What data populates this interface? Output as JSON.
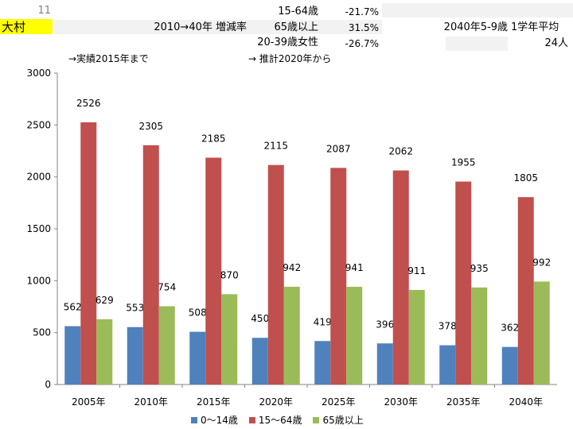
{
  "table": {
    "row_number": "11",
    "area_name": "大村",
    "period_label": "2010→40年 増減率",
    "rows": [
      {
        "label": "15-64歳",
        "value": "-21.7%"
      },
      {
        "label": "65歳以上",
        "value": "31.5%"
      },
      {
        "label": "20-39歳女性",
        "value": "-26.7%"
      }
    ],
    "school_label": "2040年5-9歳",
    "school_label2": "1学年平均",
    "school_value": "24人"
  },
  "notes": {
    "actual": "→実績2015年まで",
    "estimate": "→ 推計2020年から"
  },
  "chart_data": {
    "type": "bar",
    "categories": [
      "2005年",
      "2010年",
      "2015年",
      "2020年",
      "2025年",
      "2030年",
      "2035年",
      "2040年"
    ],
    "series": [
      {
        "name": "0～14歳",
        "color": "#4f81bd",
        "values": [
          562,
          553,
          508,
          450,
          419,
          396,
          378,
          362
        ]
      },
      {
        "name": "15～64歳",
        "color": "#c0504d",
        "values": [
          2526,
          2305,
          2185,
          2115,
          2087,
          2062,
          1955,
          1805
        ]
      },
      {
        "name": "65歳以上",
        "color": "#9bbb59",
        "values": [
          629,
          754,
          870,
          942,
          941,
          911,
          935,
          992
        ]
      }
    ],
    "ylim": [
      0,
      3000
    ],
    "yticks": [
      0,
      500,
      1000,
      1500,
      2000,
      2500,
      3000
    ],
    "grid": false,
    "legend": "bottom"
  }
}
